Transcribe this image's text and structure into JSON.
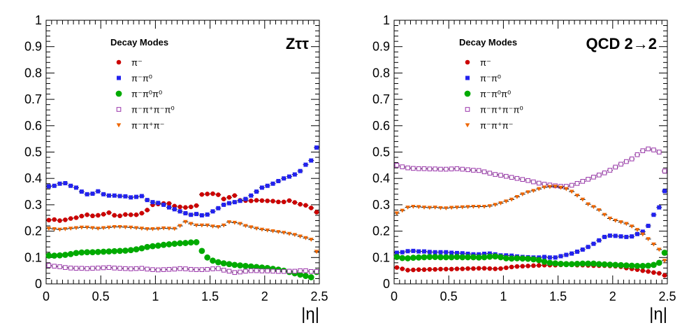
{
  "chart_data": [
    {
      "type": "scatter",
      "title": "Zττ",
      "xlabel": "|η|",
      "ylabel": "",
      "xlim": [
        0,
        2.5
      ],
      "ylim": [
        0,
        1
      ],
      "xticks": [
        "0",
        "0.5",
        "1",
        "1.5",
        "2",
        "2.5"
      ],
      "yticks": [
        "0",
        "0.1",
        "0.2",
        "0.3",
        "0.4",
        "0.5",
        "0.6",
        "0.7",
        "0.8",
        "0.9",
        "1"
      ],
      "grid": false,
      "legend": {
        "title": "Decay Modes",
        "position": "top-left"
      },
      "x": [
        0.025,
        0.075,
        0.125,
        0.175,
        0.225,
        0.275,
        0.325,
        0.375,
        0.425,
        0.475,
        0.525,
        0.575,
        0.625,
        0.675,
        0.725,
        0.775,
        0.825,
        0.875,
        0.925,
        0.975,
        1.025,
        1.075,
        1.125,
        1.175,
        1.225,
        1.275,
        1.325,
        1.375,
        1.425,
        1.475,
        1.525,
        1.575,
        1.625,
        1.675,
        1.725,
        1.775,
        1.825,
        1.875,
        1.925,
        1.975,
        2.025,
        2.075,
        2.125,
        2.175,
        2.225,
        2.275,
        2.325,
        2.375,
        2.425,
        2.475
      ],
      "x_err": 0.025,
      "series": [
        {
          "name": "π⁻",
          "color": "#cc0000",
          "marker": "circle",
          "values": [
            0.242,
            0.244,
            0.24,
            0.243,
            0.248,
            0.251,
            0.257,
            0.262,
            0.258,
            0.26,
            0.264,
            0.27,
            0.26,
            0.258,
            0.263,
            0.262,
            0.262,
            0.268,
            0.28,
            0.3,
            0.303,
            0.305,
            0.305,
            0.295,
            0.292,
            0.29,
            0.292,
            0.297,
            0.339,
            0.341,
            0.342,
            0.338,
            0.322,
            0.328,
            0.335,
            0.317,
            0.316,
            0.315,
            0.317,
            0.316,
            0.315,
            0.314,
            0.311,
            0.311,
            0.316,
            0.309,
            0.302,
            0.298,
            0.288,
            0.272
          ]
        },
        {
          "name": "π⁻π⁰",
          "color": "#2222ee",
          "marker": "square",
          "values": [
            0.37,
            0.372,
            0.38,
            0.382,
            0.372,
            0.365,
            0.35,
            0.34,
            0.342,
            0.351,
            0.34,
            0.335,
            0.335,
            0.333,
            0.332,
            0.328,
            0.33,
            0.333,
            0.318,
            0.31,
            0.307,
            0.3,
            0.29,
            0.283,
            0.275,
            0.268,
            0.262,
            0.265,
            0.26,
            0.263,
            0.275,
            0.287,
            0.3,
            0.306,
            0.31,
            0.315,
            0.322,
            0.335,
            0.35,
            0.365,
            0.372,
            0.38,
            0.39,
            0.4,
            0.407,
            0.415,
            0.428,
            0.452,
            0.468,
            0.517
          ]
        },
        {
          "name": "π⁻π⁰π⁰",
          "color": "#00aa00",
          "marker": "circle-large",
          "values": [
            0.107,
            0.107,
            0.108,
            0.11,
            0.113,
            0.117,
            0.119,
            0.12,
            0.12,
            0.121,
            0.122,
            0.123,
            0.124,
            0.125,
            0.126,
            0.128,
            0.131,
            0.135,
            0.14,
            0.143,
            0.145,
            0.148,
            0.15,
            0.152,
            0.154,
            0.155,
            0.157,
            0.158,
            0.125,
            0.1,
            0.088,
            0.082,
            0.078,
            0.075,
            0.072,
            0.07,
            0.068,
            0.066,
            0.064,
            0.062,
            0.06,
            0.057,
            0.054,
            0.05,
            0.045,
            0.04,
            0.035,
            0.03,
            0.025,
            0.045
          ]
        },
        {
          "name": "π⁻π⁺π⁻π⁰",
          "color": "#9933aa",
          "marker": "square-open",
          "values": [
            0.07,
            0.067,
            0.065,
            0.062,
            0.06,
            0.059,
            0.059,
            0.058,
            0.059,
            0.06,
            0.061,
            0.062,
            0.06,
            0.059,
            0.058,
            0.057,
            0.058,
            0.059,
            0.056,
            0.054,
            0.053,
            0.054,
            0.055,
            0.056,
            0.058,
            0.057,
            0.055,
            0.054,
            0.054,
            0.055,
            0.057,
            0.058,
            0.052,
            0.048,
            0.043,
            0.045,
            0.048,
            0.05,
            0.05,
            0.049,
            0.049,
            0.048,
            0.047,
            0.047,
            0.048,
            0.048,
            0.05,
            0.05,
            0.047,
            0.047
          ]
        },
        {
          "name": "π⁻π⁺π⁻",
          "color": "#ee6600",
          "marker": "triangle-down",
          "values": [
            0.21,
            0.208,
            0.206,
            0.208,
            0.21,
            0.212,
            0.214,
            0.214,
            0.212,
            0.21,
            0.212,
            0.214,
            0.216,
            0.216,
            0.215,
            0.214,
            0.212,
            0.21,
            0.208,
            0.208,
            0.209,
            0.211,
            0.21,
            0.209,
            0.22,
            0.235,
            0.228,
            0.222,
            0.222,
            0.222,
            0.218,
            0.216,
            0.222,
            0.234,
            0.232,
            0.228,
            0.22,
            0.215,
            0.21,
            0.206,
            0.203,
            0.2,
            0.197,
            0.194,
            0.19,
            0.186,
            0.18,
            0.174,
            0.168,
            0.122
          ]
        }
      ]
    },
    {
      "type": "scatter",
      "title": "QCD 2→2",
      "xlabel": "|η|",
      "ylabel": "",
      "xlim": [
        0,
        2.5
      ],
      "ylim": [
        0,
        1
      ],
      "xticks": [
        "0",
        "0.5",
        "1",
        "1.5",
        "2",
        "2.5"
      ],
      "yticks": [
        "0",
        "0.1",
        "0.2",
        "0.3",
        "0.4",
        "0.5",
        "0.6",
        "0.7",
        "0.8",
        "0.9",
        "1"
      ],
      "grid": false,
      "legend": {
        "title": "Decay Modes",
        "position": "top-left"
      },
      "x": [
        0.025,
        0.075,
        0.125,
        0.175,
        0.225,
        0.275,
        0.325,
        0.375,
        0.425,
        0.475,
        0.525,
        0.575,
        0.625,
        0.675,
        0.725,
        0.775,
        0.825,
        0.875,
        0.925,
        0.975,
        1.025,
        1.075,
        1.125,
        1.175,
        1.225,
        1.275,
        1.325,
        1.375,
        1.425,
        1.475,
        1.525,
        1.575,
        1.625,
        1.675,
        1.725,
        1.775,
        1.825,
        1.875,
        1.925,
        1.975,
        2.025,
        2.075,
        2.125,
        2.175,
        2.225,
        2.275,
        2.325,
        2.375,
        2.425,
        2.475
      ],
      "x_err": 0.025,
      "series": [
        {
          "name": "π⁻",
          "color": "#cc0000",
          "marker": "circle",
          "values": [
            0.062,
            0.057,
            0.052,
            0.053,
            0.054,
            0.054,
            0.055,
            0.055,
            0.056,
            0.056,
            0.056,
            0.057,
            0.057,
            0.058,
            0.058,
            0.059,
            0.059,
            0.058,
            0.057,
            0.058,
            0.061,
            0.064,
            0.066,
            0.067,
            0.068,
            0.069,
            0.07,
            0.071,
            0.071,
            0.071,
            0.072,
            0.072,
            0.072,
            0.071,
            0.071,
            0.07,
            0.069,
            0.069,
            0.069,
            0.068,
            0.067,
            0.065,
            0.06,
            0.057,
            0.054,
            0.05,
            0.047,
            0.043,
            0.04,
            0.032
          ]
        },
        {
          "name": "π⁻π⁰",
          "color": "#2222ee",
          "marker": "square",
          "values": [
            0.118,
            0.12,
            0.124,
            0.125,
            0.123,
            0.123,
            0.121,
            0.12,
            0.12,
            0.12,
            0.118,
            0.117,
            0.116,
            0.114,
            0.112,
            0.112,
            0.114,
            0.115,
            0.112,
            0.108,
            0.108,
            0.107,
            0.104,
            0.102,
            0.101,
            0.1,
            0.1,
            0.102,
            0.1,
            0.1,
            0.105,
            0.11,
            0.115,
            0.122,
            0.13,
            0.14,
            0.152,
            0.165,
            0.178,
            0.183,
            0.182,
            0.18,
            0.178,
            0.18,
            0.189,
            0.198,
            0.22,
            0.262,
            0.29,
            0.352
          ]
        },
        {
          "name": "π⁻π⁰π⁰",
          "color": "#00aa00",
          "marker": "circle-large",
          "values": [
            0.102,
            0.098,
            0.097,
            0.099,
            0.1,
            0.101,
            0.102,
            0.102,
            0.101,
            0.101,
            0.101,
            0.102,
            0.101,
            0.101,
            0.101,
            0.1,
            0.101,
            0.103,
            0.104,
            0.101,
            0.097,
            0.096,
            0.097,
            0.096,
            0.095,
            0.093,
            0.09,
            0.084,
            0.08,
            0.078,
            0.076,
            0.075,
            0.075,
            0.076,
            0.077,
            0.077,
            0.077,
            0.075,
            0.074,
            0.073,
            0.072,
            0.071,
            0.07,
            0.069,
            0.068,
            0.068,
            0.069,
            0.072,
            0.08,
            0.118
          ]
        },
        {
          "name": "π⁻π⁺π⁻π⁰",
          "color": "#9933aa",
          "marker": "square-open",
          "values": [
            0.45,
            0.444,
            0.44,
            0.438,
            0.437,
            0.437,
            0.436,
            0.436,
            0.435,
            0.435,
            0.436,
            0.437,
            0.435,
            0.433,
            0.431,
            0.43,
            0.425,
            0.42,
            0.415,
            0.412,
            0.408,
            0.404,
            0.4,
            0.396,
            0.392,
            0.387,
            0.382,
            0.378,
            0.375,
            0.372,
            0.37,
            0.37,
            0.374,
            0.381,
            0.389,
            0.397,
            0.405,
            0.413,
            0.421,
            0.431,
            0.443,
            0.454,
            0.464,
            0.474,
            0.49,
            0.505,
            0.512,
            0.508,
            0.5,
            0.428
          ]
        },
        {
          "name": "π⁻π⁺π⁻",
          "color": "#ee6600",
          "marker": "triangle-down",
          "values": [
            0.268,
            0.278,
            0.29,
            0.293,
            0.292,
            0.29,
            0.289,
            0.29,
            0.288,
            0.287,
            0.289,
            0.29,
            0.291,
            0.292,
            0.293,
            0.293,
            0.293,
            0.295,
            0.3,
            0.306,
            0.313,
            0.32,
            0.33,
            0.34,
            0.348,
            0.353,
            0.36,
            0.366,
            0.368,
            0.369,
            0.365,
            0.36,
            0.35,
            0.335,
            0.32,
            0.302,
            0.292,
            0.28,
            0.262,
            0.248,
            0.24,
            0.234,
            0.228,
            0.218,
            0.205,
            0.188,
            0.17,
            0.15,
            0.13,
            0.088
          ]
        }
      ]
    }
  ]
}
